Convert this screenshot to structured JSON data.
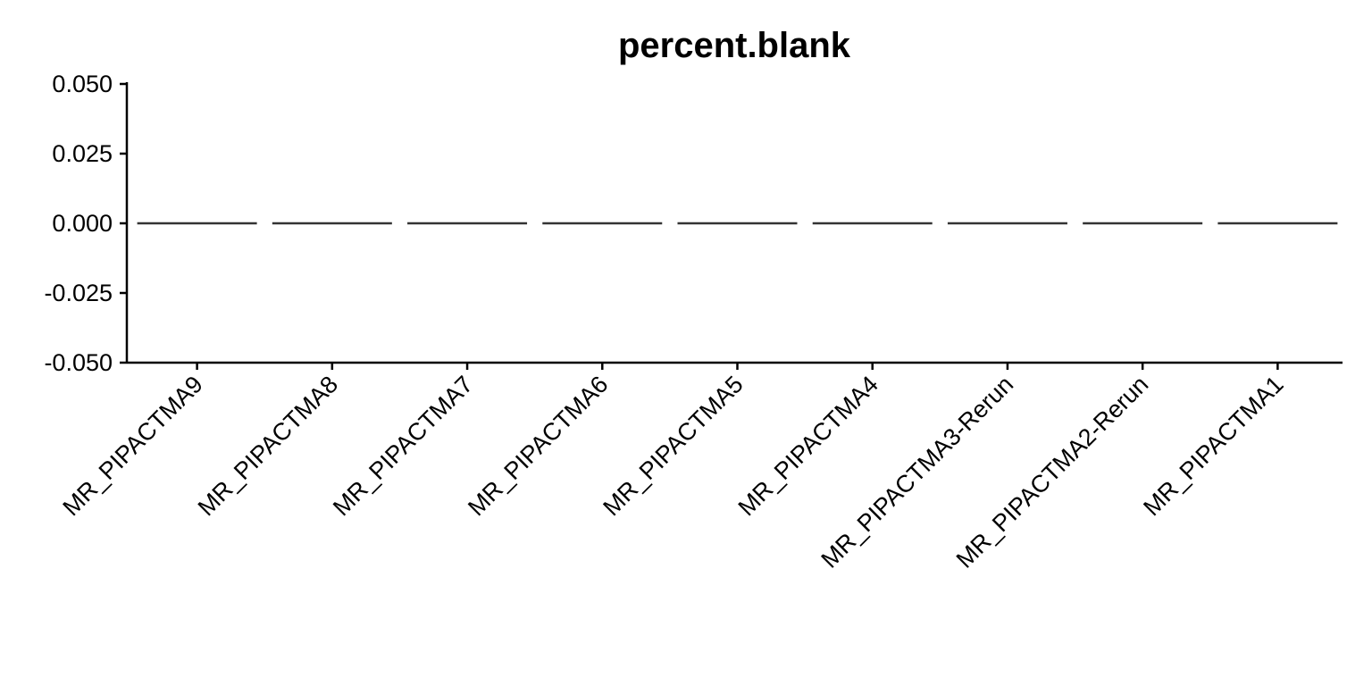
{
  "chart_data": {
    "type": "line",
    "title": "percent.blank",
    "xlabel": "",
    "ylabel": "",
    "categories": [
      "MR_PIPACTMA9",
      "MR_PIPACTMA8",
      "MR_PIPACTMA7",
      "MR_PIPACTMA6",
      "MR_PIPACTMA5",
      "MR_PIPACTMA4",
      "MR_PIPACTMA3-Rerun",
      "MR_PIPACTMA2-Rerun",
      "MR_PIPACTMA1"
    ],
    "values": [
      0,
      0,
      0,
      0,
      0,
      0,
      0,
      0,
      0
    ],
    "ylim": [
      -0.05,
      0.05
    ],
    "yticks": [
      -0.05,
      -0.025,
      0,
      0.025,
      0.05
    ],
    "ytick_labels": [
      "-0.050",
      "-0.025",
      "0.000",
      "0.025",
      "0.050"
    ],
    "grid": false,
    "legend": "none"
  }
}
